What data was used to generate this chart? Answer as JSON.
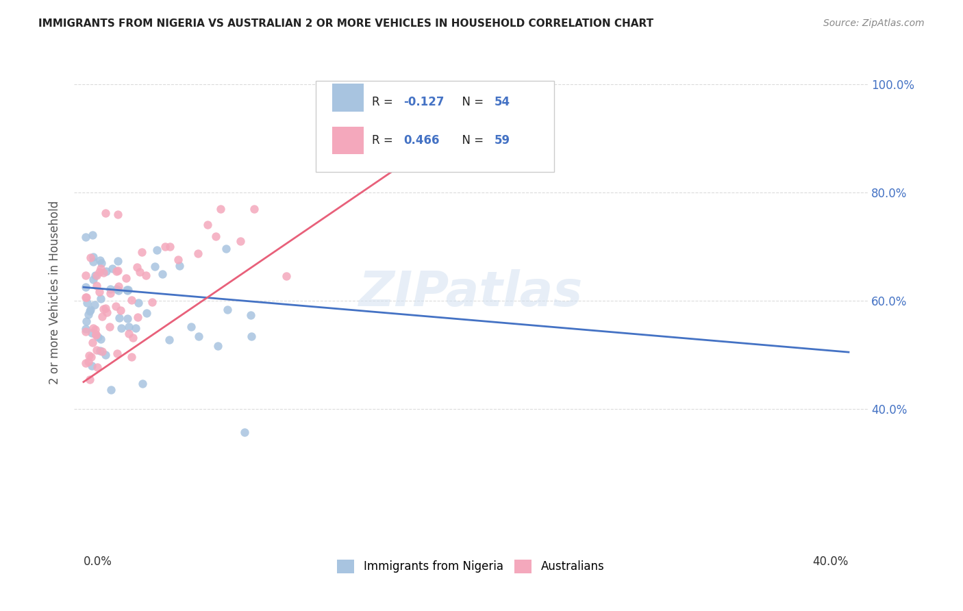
{
  "title": "IMMIGRANTS FROM NIGERIA VS AUSTRALIAN 2 OR MORE VEHICLES IN HOUSEHOLD CORRELATION CHART",
  "source": "Source: ZipAtlas.com",
  "ylabel": "2 or more Vehicles in Household",
  "ytick_labels": [
    "40.0%",
    "60.0%",
    "80.0%",
    "100.0%"
  ],
  "yticks": [
    0.4,
    0.6,
    0.8,
    1.0
  ],
  "legend_r1": "R = -0.127",
  "legend_n1": "N = 54",
  "legend_r2": "R = 0.466",
  "legend_n2": "N = 59",
  "color_blue": "#a8c4e0",
  "color_pink": "#f4a8bc",
  "color_blue_text": "#4472c4",
  "color_trend_blue": "#4472c4",
  "color_trend_pink": "#e8607a",
  "watermark": "ZIPatlas",
  "xlim": [
    -0.005,
    0.41
  ],
  "ylim": [
    0.15,
    1.08
  ]
}
